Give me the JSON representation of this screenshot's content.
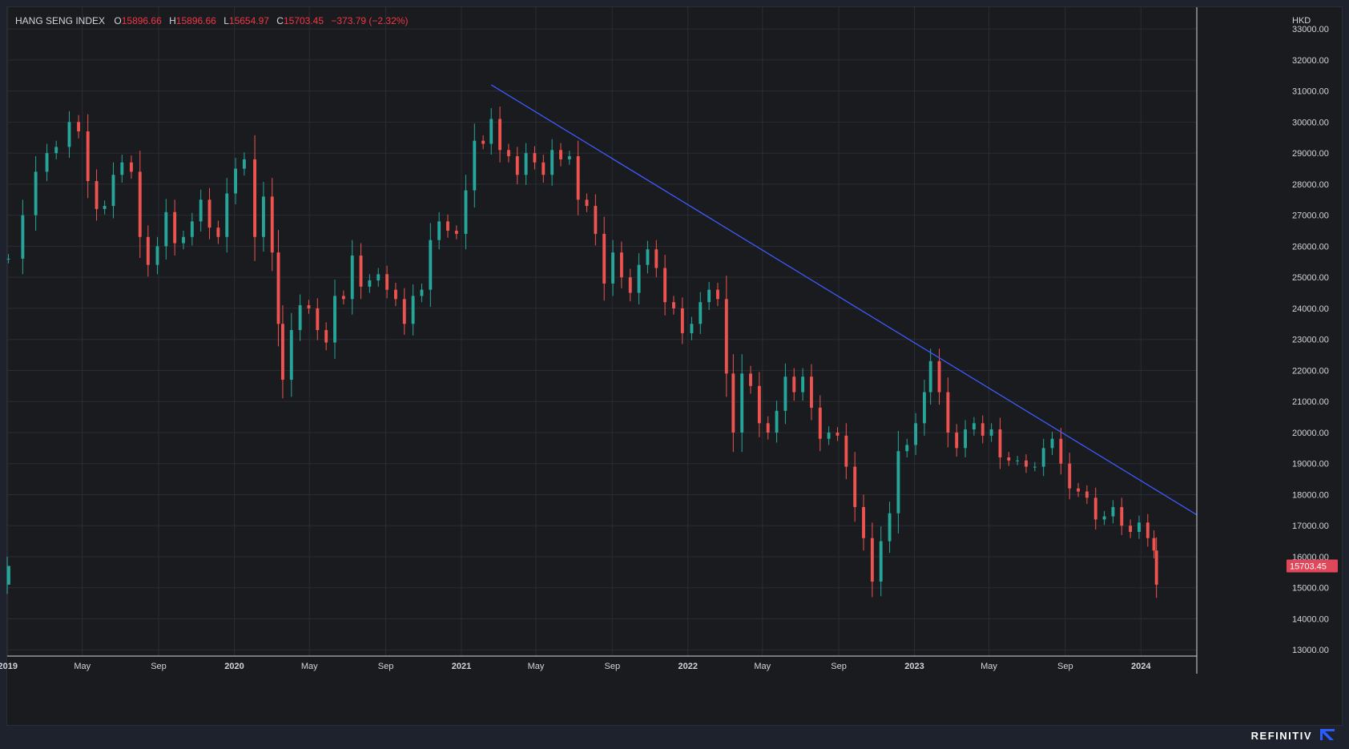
{
  "header": {
    "symbol": "HANG SENG INDEX",
    "open_label": "O",
    "open": "15896.66",
    "high_label": "H",
    "high": "15896.66",
    "low_label": "L",
    "low": "15654.97",
    "close_label": "C",
    "close": "15703.45",
    "change": "−373.79 (−2.32%)"
  },
  "footer": {
    "brand": "REFINITIV",
    "logo_icon": "refinitiv-logo-icon"
  },
  "colors": {
    "background": "#1a1b1f",
    "grid": "#2a2d35",
    "up": "#26a69a",
    "down": "#ef5350",
    "trendline": "#3d5afe",
    "price_tag": "#e0475a",
    "text": "#d1d4dc"
  },
  "chart_data": {
    "type": "candlestick",
    "currency": "HKD",
    "last_price_label": "15703.45",
    "y_ticks": [
      "13000.00",
      "14000.00",
      "15000.00",
      "16000.00",
      "17000.00",
      "18000.00",
      "19000.00",
      "20000.00",
      "21000.00",
      "22000.00",
      "23000.00",
      "24000.00",
      "25000.00",
      "26000.00",
      "27000.00",
      "28000.00",
      "29000.00",
      "30000.00",
      "31000.00",
      "32000.00",
      "33000.00"
    ],
    "x_ticks": [
      "2019",
      "May",
      "Sep",
      "2020",
      "May",
      "Sep",
      "2021",
      "May",
      "Sep",
      "2022",
      "May",
      "Sep",
      "2023",
      "May",
      "Sep",
      "2024"
    ],
    "x_tick_dates": [
      "2019-01-01",
      "2019-05-01",
      "2019-09-01",
      "2020-01-01",
      "2020-05-01",
      "2020-09-01",
      "2021-01-01",
      "2021-05-01",
      "2021-09-01",
      "2022-01-01",
      "2022-05-01",
      "2022-09-01",
      "2023-01-01",
      "2023-05-01",
      "2023-09-01",
      "2024-01-01"
    ],
    "ylim": [
      12800,
      33700
    ],
    "x_range": [
      "2018-12-31",
      "2024-03-31"
    ],
    "grid": true,
    "series": [
      {
        "dates": [
          "2019-01-02",
          "2019-01-25",
          "2019-02-15",
          "2019-03-05",
          "2019-03-20",
          "2019-04-10",
          "2019-04-25",
          "2019-05-10",
          "2019-05-24",
          "2019-06-06",
          "2019-06-20",
          "2019-07-04",
          "2019-07-19",
          "2019-08-02",
          "2019-08-15",
          "2019-08-30",
          "2019-09-13",
          "2019-09-27",
          "2019-10-11",
          "2019-10-25",
          "2019-11-08",
          "2019-11-22",
          "2019-12-06",
          "2019-12-20",
          "2020-01-03",
          "2020-01-17",
          "2020-02-03",
          "2020-02-17",
          "2020-03-02",
          "2020-03-12",
          "2020-03-19",
          "2020-04-02",
          "2020-04-16",
          "2020-04-30",
          "2020-05-14",
          "2020-05-28",
          "2020-06-11",
          "2020-06-25",
          "2020-07-09",
          "2020-07-23",
          "2020-08-06",
          "2020-08-20",
          "2020-09-03",
          "2020-09-17",
          "2020-10-01",
          "2020-10-15",
          "2020-10-29",
          "2020-11-12",
          "2020-11-26",
          "2020-12-10",
          "2020-12-24",
          "2021-01-08",
          "2021-01-22",
          "2021-02-05",
          "2021-02-18",
          "2021-03-04",
          "2021-03-18",
          "2021-04-01",
          "2021-04-15",
          "2021-04-29",
          "2021-05-13",
          "2021-05-27",
          "2021-06-10",
          "2021-06-24",
          "2021-07-08",
          "2021-07-22",
          "2021-08-05",
          "2021-08-19",
          "2021-09-02",
          "2021-09-16",
          "2021-09-30",
          "2021-10-14",
          "2021-10-28",
          "2021-11-11",
          "2021-11-25",
          "2021-12-09",
          "2021-12-23",
          "2022-01-07",
          "2022-01-21",
          "2022-02-04",
          "2022-02-18",
          "2022-03-04",
          "2022-03-15",
          "2022-03-29",
          "2022-04-12",
          "2022-04-26",
          "2022-05-10",
          "2022-05-24",
          "2022-06-07",
          "2022-06-21",
          "2022-07-05",
          "2022-07-19",
          "2022-08-02",
          "2022-08-16",
          "2022-08-30",
          "2022-09-13",
          "2022-09-27",
          "2022-10-11",
          "2022-10-25",
          "2022-11-08",
          "2022-11-22",
          "2022-12-06",
          "2022-12-20",
          "2023-01-03",
          "2023-01-17",
          "2023-01-27",
          "2023-02-10",
          "2023-02-24",
          "2023-03-10",
          "2023-03-24",
          "2023-04-07",
          "2023-04-21",
          "2023-05-05",
          "2023-05-19",
          "2023-06-02",
          "2023-06-16",
          "2023-06-30",
          "2023-07-14",
          "2023-07-28",
          "2023-08-11",
          "2023-08-25",
          "2023-09-08",
          "2023-09-22",
          "2023-10-06",
          "2023-10-20",
          "2023-11-03",
          "2023-11-17",
          "2023-12-01",
          "2023-12-15",
          "2023-12-29",
          "2024-01-12",
          "2024-01-22",
          "2024-01-26"
        ],
        "closes": [
          25600,
          27000,
          28400,
          29000,
          29200,
          30000,
          29700,
          28100,
          27200,
          27300,
          28300,
          28700,
          28400,
          26300,
          25400,
          26000,
          27100,
          26100,
          26300,
          26800,
          27500,
          26600,
          26300,
          27700,
          28500,
          28800,
          26300,
          27600,
          25800,
          23500,
          21700,
          23300,
          24100,
          24000,
          23300,
          22900,
          24400,
          24300,
          25700,
          24700,
          24900,
          25100,
          24600,
          24300,
          23500,
          24400,
          24600,
          26200,
          26800,
          26500,
          26400,
          27800,
          29400,
          29300,
          30100,
          29100,
          28900,
          28300,
          29000,
          28700,
          28300,
          29100,
          28800,
          28900,
          27500,
          27300,
          26400,
          24800,
          25800,
          25000,
          24500,
          25400,
          25900,
          25300,
          24200,
          24000,
          23200,
          23500,
          24200,
          24600,
          24300,
          21900,
          20000,
          21900,
          21500,
          20300,
          20000,
          20700,
          21800,
          21300,
          21800,
          20800,
          19800,
          20000,
          19900,
          18900,
          17600,
          16600,
          15200,
          16500,
          17400,
          19400,
          19600,
          20300,
          21300,
          22300,
          21300,
          20000,
          19500,
          20100,
          20300,
          19900,
          20100,
          19200,
          19100,
          19100,
          18900,
          18900,
          19500,
          19800,
          19000,
          18200,
          18100,
          17900,
          17200,
          17300,
          17600,
          17000,
          16800,
          17100,
          16600,
          16200,
          15100,
          15703.45
        ]
      }
    ]
  }
}
